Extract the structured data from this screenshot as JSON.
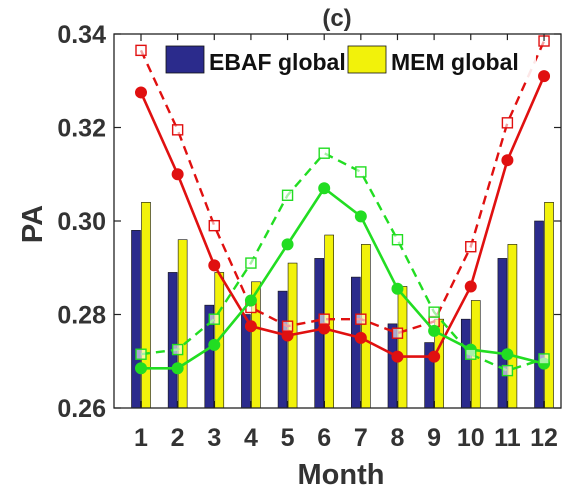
{
  "chart_data": {
    "type": "bar",
    "title": "(c)",
    "xlabel": "Month",
    "ylabel": "PA",
    "categories": [
      "1",
      "2",
      "3",
      "4",
      "5",
      "6",
      "7",
      "8",
      "9",
      "10",
      "11",
      "12"
    ],
    "ylim": [
      0.26,
      0.34
    ],
    "yticks": [
      "0.26",
      "0.28",
      "0.30",
      "0.32",
      "0.34"
    ],
    "legend_position": "top",
    "series": [
      {
        "name": "EBAF global",
        "kind": "bar",
        "color": "#2b2b8c",
        "values": [
          0.298,
          0.289,
          0.282,
          0.28,
          0.285,
          0.292,
          0.288,
          0.278,
          0.274,
          0.279,
          0.292,
          0.3
        ]
      },
      {
        "name": "MEM global",
        "kind": "bar",
        "color": "#f2f20a",
        "values": [
          0.304,
          0.296,
          0.289,
          0.287,
          0.291,
          0.297,
          0.295,
          0.286,
          0.279,
          0.283,
          0.295,
          0.304
        ]
      },
      {
        "kind": "line",
        "color": "#e01010",
        "style": "solid",
        "marker": "circle",
        "values": [
          0.3275,
          0.31,
          0.2905,
          0.2775,
          0.2755,
          0.277,
          0.275,
          0.271,
          0.271,
          0.286,
          0.313,
          0.331
        ]
      },
      {
        "kind": "line",
        "color": "#e01010",
        "style": "dashed",
        "marker": "square",
        "values": [
          0.3365,
          0.3195,
          0.299,
          0.2815,
          0.2775,
          0.279,
          0.279,
          0.276,
          0.2785,
          0.2945,
          0.321,
          0.3385
        ]
      },
      {
        "kind": "line",
        "color": "#22dd22",
        "style": "solid",
        "marker": "circle",
        "values": [
          0.2685,
          0.2685,
          0.2735,
          0.283,
          0.295,
          0.307,
          0.301,
          0.2855,
          0.2765,
          0.2725,
          0.2715,
          0.2695
        ]
      },
      {
        "kind": "line",
        "color": "#22dd22",
        "style": "dashed",
        "marker": "square",
        "values": [
          0.2715,
          0.2725,
          0.279,
          0.291,
          0.3055,
          0.3145,
          0.3105,
          0.296,
          0.2805,
          0.2715,
          0.268,
          0.2705
        ]
      }
    ]
  }
}
